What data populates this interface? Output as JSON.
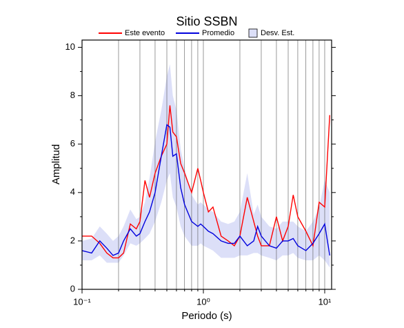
{
  "chart_data": {
    "type": "line",
    "title": "Sitio SSBN",
    "x_label": "Periodo (s)",
    "y_label": "Amplitud",
    "x_scale": "log",
    "grid": true,
    "legend": "top",
    "xlim": [
      0.1,
      11.4
    ],
    "ylim": [
      0,
      10.3
    ],
    "xticks": [
      {
        "value": 0.1,
        "label": "10⁻¹"
      },
      {
        "value": 1,
        "label": "10⁰"
      },
      {
        "value": 10,
        "label": "10¹"
      }
    ],
    "xminorticks": [
      0.2,
      0.3,
      0.4,
      0.5,
      0.6,
      0.7,
      0.8,
      0.9,
      2,
      3,
      4,
      5,
      6,
      7,
      8,
      9
    ],
    "yticks": [
      0,
      2,
      4,
      6,
      8,
      10
    ],
    "yminorticks": [
      1,
      3,
      5,
      7,
      9
    ],
    "x": [
      0.1,
      0.12,
      0.14,
      0.16,
      0.18,
      0.2,
      0.22,
      0.25,
      0.28,
      0.3,
      0.33,
      0.36,
      0.4,
      0.45,
      0.5,
      0.53,
      0.56,
      0.6,
      0.65,
      0.7,
      0.8,
      0.9,
      0.95,
      1.0,
      1.1,
      1.2,
      1.4,
      1.6,
      1.8,
      2.0,
      2.3,
      2.6,
      2.8,
      3.0,
      3.5,
      4.0,
      4.5,
      5.0,
      5.5,
      6,
      7,
      8,
      9,
      10,
      11
    ],
    "series": [
      {
        "name": "Este evento",
        "color": "#ff0000",
        "values": [
          2.2,
          2.2,
          1.9,
          1.5,
          1.3,
          1.3,
          1.5,
          2.7,
          2.5,
          2.8,
          4.5,
          3.8,
          4.8,
          5.5,
          6.0,
          7.6,
          6.5,
          6.3,
          5.2,
          4.8,
          4.0,
          5.0,
          4.5,
          4.0,
          3.2,
          3.4,
          2.2,
          2.0,
          1.8,
          2.2,
          3.8,
          2.8,
          2.2,
          1.8,
          1.8,
          3.0,
          2.0,
          2.6,
          3.9,
          3.0,
          2.4,
          1.8,
          3.6,
          3.4,
          7.2
        ]
      },
      {
        "name": "Promedio",
        "color": "#0000dd",
        "values": [
          1.6,
          1.5,
          2.0,
          1.7,
          1.4,
          1.5,
          2.0,
          2.5,
          2.2,
          2.3,
          2.8,
          3.2,
          4.0,
          5.5,
          6.8,
          6.7,
          5.5,
          5.6,
          4.2,
          3.5,
          2.8,
          2.6,
          2.7,
          2.6,
          2.4,
          2.3,
          2.0,
          1.9,
          1.9,
          2.2,
          1.8,
          2.0,
          2.6,
          2.2,
          1.8,
          1.7,
          2.0,
          2.0,
          2.1,
          1.8,
          1.6,
          1.9,
          2.3,
          2.7,
          1.4
        ]
      },
      {
        "name": "Desv. Est.",
        "color": "#dcdff8",
        "kind": "band",
        "lower": [
          1.2,
          1.2,
          1.4,
          1.1,
          1.1,
          1.1,
          1.4,
          1.9,
          1.8,
          1.9,
          2.1,
          2.3,
          2.8,
          3.6,
          4.5,
          4.8,
          3.8,
          3.4,
          2.6,
          2.2,
          1.8,
          1.8,
          1.9,
          1.8,
          1.7,
          1.6,
          1.3,
          1.3,
          1.3,
          1.4,
          1.4,
          1.5,
          1.5,
          1.4,
          1.3,
          1.2,
          1.4,
          1.4,
          1.5,
          1.3,
          1.2,
          1.2,
          1.4,
          1.2,
          0.9
        ],
        "upper": [
          2.0,
          2.1,
          2.6,
          2.3,
          2.0,
          2.2,
          2.6,
          3.3,
          2.9,
          3.0,
          3.6,
          4.6,
          6.1,
          7.4,
          8.8,
          9.3,
          8.0,
          7.4,
          5.8,
          5.0,
          3.9,
          3.5,
          3.6,
          3.5,
          3.3,
          3.2,
          2.8,
          2.7,
          2.8,
          3.2,
          4.8,
          3.1,
          3.5,
          3.0,
          2.6,
          2.5,
          2.8,
          2.8,
          2.8,
          2.6,
          2.4,
          2.8,
          3.4,
          4.5,
          4.0
        ]
      }
    ]
  }
}
